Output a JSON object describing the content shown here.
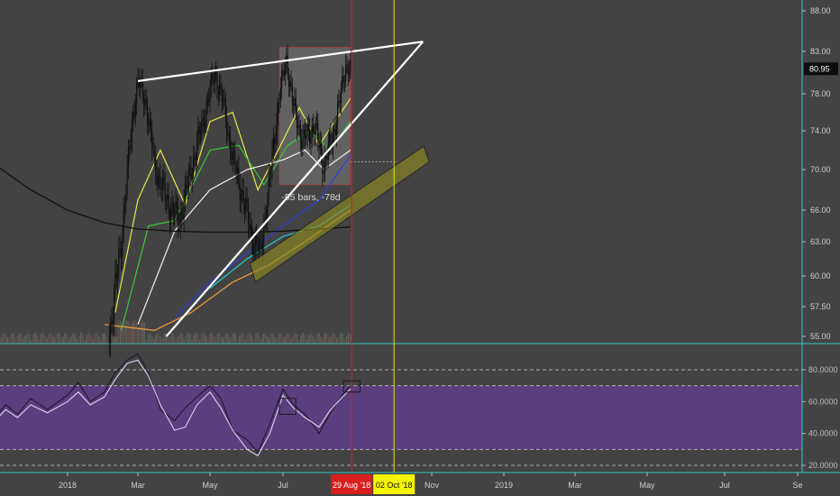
{
  "chart_data": [
    {
      "type": "candlestick",
      "panel": "price",
      "title": "",
      "y_axis_ticks": [
        88.0,
        83.0,
        78.0,
        74.0,
        70.0,
        66.0,
        63.0,
        60.0,
        57.5,
        55.0
      ],
      "y_axis_tick_labels": [
        "88.00",
        "83.00",
        "78.00",
        "74.00",
        "70.00",
        "66.00",
        "63.00",
        "60.00",
        "57.50",
        "55.00"
      ],
      "x_axis_ticks": [
        "2018",
        "Mar",
        "May",
        "Jul",
        "Nov",
        "2019",
        "Mar",
        "May",
        "Jul",
        "Se"
      ],
      "last_price": 80.95,
      "last_price_label": "80.95",
      "price_path": [
        [
          "2018-02-05",
          55.0
        ],
        [
          "2018-02-15",
          63.0
        ],
        [
          "2018-02-25",
          76.0
        ],
        [
          "2018-03-01",
          79.5
        ],
        [
          "2018-03-08",
          77.0
        ],
        [
          "2018-03-15",
          70.5
        ],
        [
          "2018-03-25",
          67.0
        ],
        [
          "2018-04-05",
          65.0
        ],
        [
          "2018-04-15",
          70.0
        ],
        [
          "2018-04-25",
          75.0
        ],
        [
          "2018-05-05",
          80.5
        ],
        [
          "2018-05-12",
          77.0
        ],
        [
          "2018-05-20",
          71.0
        ],
        [
          "2018-05-28",
          67.5
        ],
        [
          "2018-06-05",
          63.5
        ],
        [
          "2018-06-12",
          62.0
        ],
        [
          "2018-06-20",
          69.0
        ],
        [
          "2018-06-28",
          78.0
        ],
        [
          "2018-07-04",
          82.0
        ],
        [
          "2018-07-10",
          76.5
        ],
        [
          "2018-07-18",
          73.0
        ],
        [
          "2018-07-28",
          74.5
        ],
        [
          "2018-08-05",
          70.5
        ],
        [
          "2018-08-12",
          73.0
        ],
        [
          "2018-08-20",
          78.0
        ],
        [
          "2018-08-24",
          81.5
        ],
        [
          "2018-08-28",
          80.95
        ]
      ],
      "moving_averages": [
        {
          "color": "#e8e84a",
          "values": [
            [
              "2018-02-10",
              57.0
            ],
            [
              "2018-03-01",
              67.0
            ],
            [
              "2018-03-20",
              72.0
            ],
            [
              "2018-04-10",
              66.5
            ],
            [
              "2018-05-01",
              75.0
            ],
            [
              "2018-05-20",
              76.0
            ],
            [
              "2018-06-10",
              68.0
            ],
            [
              "2018-07-01",
              73.0
            ],
            [
              "2018-07-15",
              76.5
            ],
            [
              "2018-08-01",
              72.5
            ],
            [
              "2018-08-28",
              77.5
            ]
          ]
        },
        {
          "color": "#3ec93e",
          "values": [
            [
              "2018-02-15",
              55.5
            ],
            [
              "2018-03-10",
              64.5
            ],
            [
              "2018-04-01",
              65.0
            ],
            [
              "2018-05-01",
              72.0
            ],
            [
              "2018-05-25",
              72.5
            ],
            [
              "2018-06-15",
              68.5
            ],
            [
              "2018-07-05",
              72.5
            ],
            [
              "2018-07-25",
              74.0
            ],
            [
              "2018-08-10",
              72.0
            ],
            [
              "2018-08-28",
              75.0
            ]
          ]
        },
        {
          "color": "#f2f2f2",
          "values": [
            [
              "2018-03-01",
              56.0
            ],
            [
              "2018-04-01",
              64.0
            ],
            [
              "2018-05-01",
              68.0
            ],
            [
              "2018-06-01",
              70.0
            ],
            [
              "2018-07-01",
              71.0
            ],
            [
              "2018-07-20",
              72.0
            ],
            [
              "2018-08-05",
              70.0
            ],
            [
              "2018-08-28",
              72.0
            ]
          ]
        },
        {
          "color": "#2c3ee0",
          "values": [
            [
              "2018-04-01",
              56.5
            ],
            [
              "2018-05-01",
              59.5
            ],
            [
              "2018-06-01",
              62.0
            ],
            [
              "2018-07-01",
              64.5
            ],
            [
              "2018-08-01",
              67.0
            ],
            [
              "2018-08-28",
              71.5
            ]
          ]
        },
        {
          "color": "#f0a03c",
          "values": [
            [
              "2018-02-01",
              56.0
            ],
            [
              "2018-03-15",
              55.5
            ],
            [
              "2018-04-15",
              57.0
            ],
            [
              "2018-05-20",
              59.5
            ],
            [
              "2018-06-20",
              61.0
            ],
            [
              "2018-07-20",
              63.0
            ],
            [
              "2018-08-28",
              66.0
            ]
          ]
        },
        {
          "color": "#27c8c8",
          "values": [
            [
              "2018-05-01",
              59.0
            ],
            [
              "2018-06-01",
              61.5
            ],
            [
              "2018-07-01",
              63.5
            ],
            [
              "2018-08-01",
              64.5
            ],
            [
              "2018-08-28",
              66.5
            ]
          ]
        },
        {
          "color": "#111111",
          "values": [
            [
              "2017-11-01",
              70.5
            ],
            [
              "2017-12-01",
              68.0
            ],
            [
              "2018-01-01",
              66.0
            ],
            [
              "2018-02-01",
              64.8
            ],
            [
              "2018-03-01",
              64.2
            ],
            [
              "2018-04-01",
              64.0
            ],
            [
              "2018-05-01",
              63.9
            ],
            [
              "2018-06-01",
              63.9
            ],
            [
              "2018-07-01",
              64.0
            ],
            [
              "2018-08-01",
              64.2
            ],
            [
              "2018-08-28",
              64.4
            ]
          ]
        }
      ],
      "trendlines": [
        {
          "kind": "upper",
          "from": [
            "2018-03-01",
            79.5
          ],
          "to": [
            "2018-10-25",
            84.2
          ]
        },
        {
          "kind": "lower",
          "from": [
            "2018-03-25",
            55.0
          ],
          "to": [
            "2018-10-25",
            84.2
          ]
        }
      ],
      "channel": {
        "from_low": [
          "2018-06-08",
          59.5
        ],
        "to_low": [
          "2018-10-30",
          70.8
        ],
        "height": 1.6
      },
      "measure_box": {
        "x_start": "2018-06-28",
        "x_end": "2018-08-28",
        "y_top": 83.5,
        "y_bottom": 68.5
      },
      "annotation": "-55 bars, -78d",
      "vlines": [
        {
          "date": "2018-08-29",
          "color": "#c42828",
          "label": "29 Aug '18",
          "label_bg": "#d81e1e",
          "label_color": "#ffffff"
        },
        {
          "date": "2018-10-02",
          "color": "#e6e600",
          "label": "02 Oct '18",
          "label_bg": "#f5f500",
          "label_color": "#111111"
        }
      ],
      "ref_price": 70.8,
      "colors": {
        "background": "#434343",
        "candles": "#101010",
        "trendline": "#ffffff",
        "channel": "#8a8a22",
        "price_tag_bg": "#0d0d0d"
      }
    },
    {
      "type": "line",
      "panel": "rsi",
      "y_axis_ticks": [
        80,
        60,
        40,
        20
      ],
      "y_axis_tick_labels": [
        "80.0000",
        "60.0000",
        "40.0000",
        "20.0000"
      ],
      "levels": [
        80,
        70,
        30,
        20
      ],
      "shade_range": [
        30,
        70
      ],
      "series": [
        {
          "line": "dark",
          "color": "#1b1b2a",
          "values": [
            [
              "2017-11-01",
              50
            ],
            [
              "2017-11-10",
              58
            ],
            [
              "2017-11-20",
              52
            ],
            [
              "2017-12-01",
              62
            ],
            [
              "2017-12-15",
              55
            ],
            [
              "2018-01-01",
              64
            ],
            [
              "2018-01-10",
              72
            ],
            [
              "2018-01-20",
              60
            ],
            [
              "2018-02-01",
              66
            ],
            [
              "2018-02-10",
              78
            ],
            [
              "2018-02-20",
              86
            ],
            [
              "2018-03-01",
              90
            ],
            [
              "2018-03-10",
              78
            ],
            [
              "2018-03-20",
              55
            ],
            [
              "2018-04-01",
              48
            ],
            [
              "2018-04-10",
              56
            ],
            [
              "2018-04-20",
              63
            ],
            [
              "2018-05-01",
              70
            ],
            [
              "2018-05-10",
              62
            ],
            [
              "2018-05-20",
              42
            ],
            [
              "2018-06-01",
              36
            ],
            [
              "2018-06-10",
              28
            ],
            [
              "2018-06-20",
              46
            ],
            [
              "2018-07-01",
              68
            ],
            [
              "2018-07-10",
              58
            ],
            [
              "2018-07-20",
              52
            ],
            [
              "2018-08-01",
              40
            ],
            [
              "2018-08-10",
              52
            ],
            [
              "2018-08-20",
              63
            ],
            [
              "2018-08-28",
              70
            ]
          ]
        },
        {
          "line": "light",
          "color": "#e0d0f0",
          "values": [
            [
              "2017-11-01",
              48
            ],
            [
              "2017-11-10",
              55
            ],
            [
              "2017-11-20",
              50
            ],
            [
              "2017-12-01",
              58
            ],
            [
              "2017-12-15",
              53
            ],
            [
              "2018-01-01",
              60
            ],
            [
              "2018-01-10",
              66
            ],
            [
              "2018-01-20",
              58
            ],
            [
              "2018-02-01",
              63
            ],
            [
              "2018-02-10",
              74
            ],
            [
              "2018-02-20",
              84
            ],
            [
              "2018-03-01",
              86
            ],
            [
              "2018-03-10",
              76
            ],
            [
              "2018-03-20",
              58
            ],
            [
              "2018-04-01",
              42
            ],
            [
              "2018-04-10",
              44
            ],
            [
              "2018-04-20",
              58
            ],
            [
              "2018-05-01",
              66
            ],
            [
              "2018-05-10",
              56
            ],
            [
              "2018-05-20",
              42
            ],
            [
              "2018-06-01",
              30
            ],
            [
              "2018-06-10",
              26
            ],
            [
              "2018-06-20",
              40
            ],
            [
              "2018-07-01",
              64
            ],
            [
              "2018-07-10",
              56
            ],
            [
              "2018-07-20",
              50
            ],
            [
              "2018-08-01",
              44
            ],
            [
              "2018-08-10",
              54
            ],
            [
              "2018-08-20",
              62
            ],
            [
              "2018-08-28",
              68
            ]
          ]
        }
      ],
      "boxes": [
        {
          "x_start": "2018-06-28",
          "x_end": "2018-07-12",
          "y_top": 62,
          "y_bottom": 52
        },
        {
          "x_start": "2018-08-22",
          "x_end": "2018-09-05",
          "y_top": 73,
          "y_bottom": 66
        }
      ],
      "colors": {
        "background": "#434343",
        "rsi_band": "#5a3f7e",
        "level_lines": "#c8c8c8"
      }
    }
  ]
}
